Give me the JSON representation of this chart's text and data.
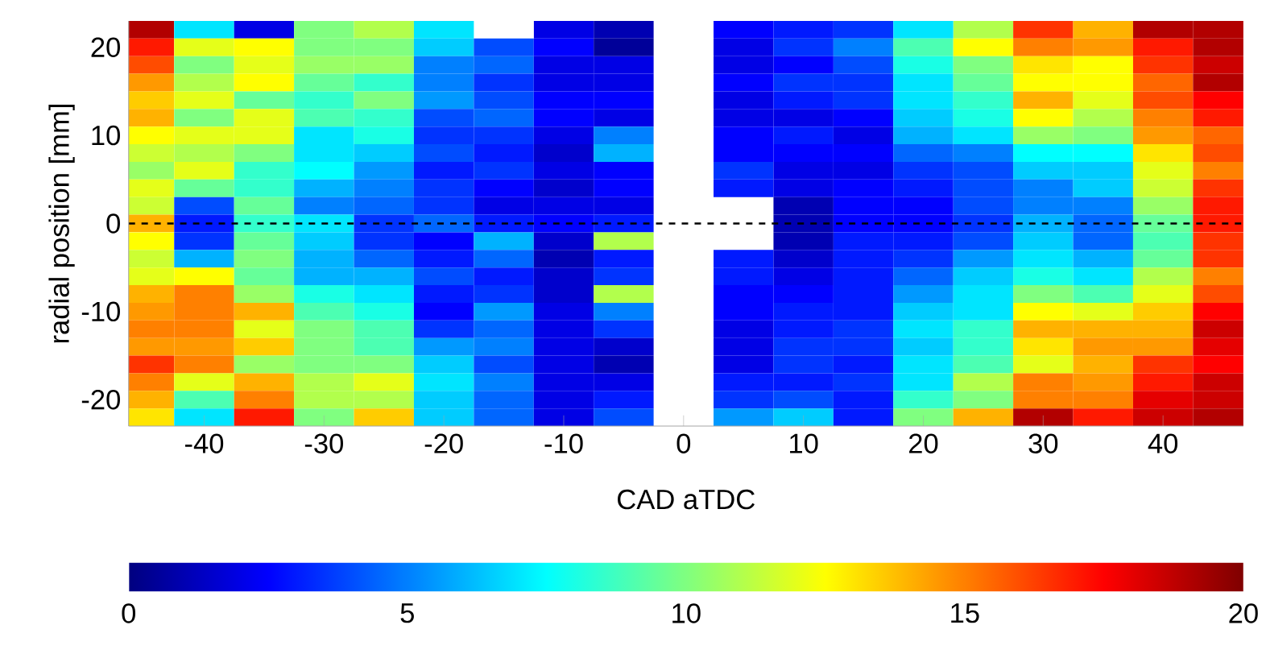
{
  "chart_data": {
    "type": "heatmap",
    "xlabel": "CAD aTDC",
    "ylabel": "radial position [mm]",
    "x": [
      -45,
      -40,
      -35,
      -30,
      -25,
      -20,
      -15,
      -10,
      -5,
      0,
      5,
      10,
      15,
      20,
      25,
      30,
      35,
      40,
      45
    ],
    "cells": [
      [
        19,
        7,
        2,
        10,
        11,
        7,
        null,
        2,
        1,
        null,
        2.5,
        3,
        3.5,
        7,
        11,
        16.5,
        14,
        19,
        19
      ],
      [
        17,
        12,
        12.5,
        10,
        10,
        6.5,
        4,
        2.5,
        0.5,
        null,
        2,
        3.5,
        5,
        9,
        12.5,
        15,
        14.5,
        17,
        19
      ],
      [
        16,
        10,
        12,
        10.5,
        10.5,
        5,
        4.5,
        2,
        2,
        null,
        2,
        2.5,
        4,
        8,
        10,
        13,
        12.5,
        16.5,
        18.5
      ],
      [
        14.5,
        11,
        12.5,
        9.5,
        8.5,
        5,
        3.5,
        2,
        2,
        null,
        2.5,
        3.5,
        3.5,
        7,
        9.5,
        12.5,
        12.5,
        15.5,
        19
      ],
      [
        13.5,
        12,
        9.5,
        8.5,
        10,
        5.5,
        4,
        2.5,
        2.5,
        null,
        2,
        3,
        3.5,
        7,
        8.5,
        14,
        12,
        16,
        17.5
      ],
      [
        14,
        10,
        12,
        9,
        8.5,
        4,
        4.5,
        2.5,
        2,
        null,
        2,
        2,
        2.5,
        6.5,
        8,
        12.5,
        11,
        15,
        17
      ],
      [
        12.5,
        12,
        12,
        7,
        8,
        3.5,
        3.5,
        2,
        5,
        null,
        2.5,
        3,
        2,
        6,
        7,
        10.5,
        10,
        14.5,
        15.5
      ],
      [
        11.5,
        11,
        10,
        7,
        6.5,
        4,
        3,
        1.5,
        6,
        null,
        2.5,
        2.5,
        2.5,
        4.5,
        5,
        7.5,
        7.5,
        13,
        16
      ],
      [
        10.5,
        12,
        8.5,
        7.5,
        5.5,
        3,
        3.5,
        2,
        2.5,
        null,
        3.5,
        2,
        2,
        3.5,
        4,
        6.5,
        6.5,
        12,
        15
      ],
      [
        12,
        9.5,
        8.5,
        6,
        5,
        3.5,
        2.5,
        1.5,
        2.5,
        null,
        3,
        2,
        2.5,
        3,
        4,
        5,
        6.5,
        11.5,
        16.5
      ],
      [
        11.5,
        4,
        9.5,
        5,
        4.5,
        3.5,
        2,
        2,
        2,
        null,
        null,
        1,
        2.5,
        2.5,
        4,
        5,
        5,
        10.5,
        17
      ],
      [
        14,
        3,
        8.5,
        7,
        3.5,
        4.5,
        3,
        2.5,
        3,
        null,
        null,
        1,
        2.5,
        2.5,
        3.5,
        6,
        4.5,
        9.5,
        17
      ],
      [
        12.5,
        3.5,
        9.5,
        6.5,
        3.5,
        2.5,
        6,
        1.5,
        11,
        null,
        null,
        1,
        3,
        3,
        4,
        6.5,
        4.5,
        9,
        16.5
      ],
      [
        11.5,
        6,
        10,
        6,
        4.5,
        3,
        4.5,
        1,
        3,
        null,
        3,
        1.5,
        3,
        3.5,
        5.5,
        7,
        6,
        9.5,
        16.5
      ],
      [
        12,
        12.5,
        9.5,
        6,
        6,
        4,
        3,
        1.5,
        3.5,
        null,
        3,
        2,
        3,
        4.5,
        6.5,
        8,
        7,
        11,
        15
      ],
      [
        14,
        15,
        10.5,
        8,
        7,
        3,
        3.5,
        1.5,
        11,
        null,
        2.5,
        2.5,
        3,
        5.5,
        7,
        10,
        9,
        12,
        16
      ],
      [
        14.5,
        15,
        14,
        9,
        8,
        2.5,
        5.5,
        2,
        5,
        null,
        2.5,
        3,
        3,
        6.5,
        7,
        12.5,
        12,
        13.5,
        17.5
      ],
      [
        15,
        15,
        12,
        10,
        9,
        3.5,
        4.5,
        2,
        3.5,
        null,
        2,
        3,
        3.5,
        7,
        8.5,
        14,
        14,
        14,
        18.5
      ],
      [
        14.5,
        14.5,
        13.5,
        10,
        9,
        5.5,
        5,
        2,
        1.5,
        null,
        2,
        3.5,
        3.5,
        6.5,
        8.5,
        13,
        14.5,
        14.5,
        18
      ],
      [
        16.5,
        15,
        10.5,
        10,
        10,
        6.5,
        4,
        2,
        1,
        null,
        2,
        3.5,
        3,
        7,
        9,
        12,
        14,
        16.5,
        17.5
      ],
      [
        15,
        12,
        14,
        11,
        12,
        7,
        5,
        2,
        2,
        null,
        3,
        3,
        3.5,
        7,
        11,
        15,
        14.5,
        17,
        18.5
      ],
      [
        14,
        9,
        15,
        11,
        11,
        6.5,
        4.5,
        2,
        3,
        null,
        3.5,
        4,
        3,
        8.5,
        10,
        15,
        15,
        18,
        18.5
      ],
      [
        13,
        7,
        17,
        10,
        13.5,
        6.5,
        4.5,
        2,
        4,
        null,
        5.5,
        6.5,
        3,
        10,
        14,
        19,
        17,
        18.5,
        19
      ]
    ],
    "xlim": [
      -46.3,
      46.7
    ],
    "xticks": [
      -40,
      -30,
      -20,
      -10,
      0,
      10,
      20,
      30,
      40
    ],
    "ylim": [
      -23,
      23
    ],
    "yticks": [
      -20,
      -10,
      0,
      10,
      20
    ],
    "clim": [
      0,
      20
    ],
    "cticks": [
      0,
      5,
      10,
      15,
      20
    ],
    "ref_lines": [
      {
        "axis": "y",
        "value": 0,
        "color": "#000000",
        "line_style": "dashed"
      }
    ]
  }
}
